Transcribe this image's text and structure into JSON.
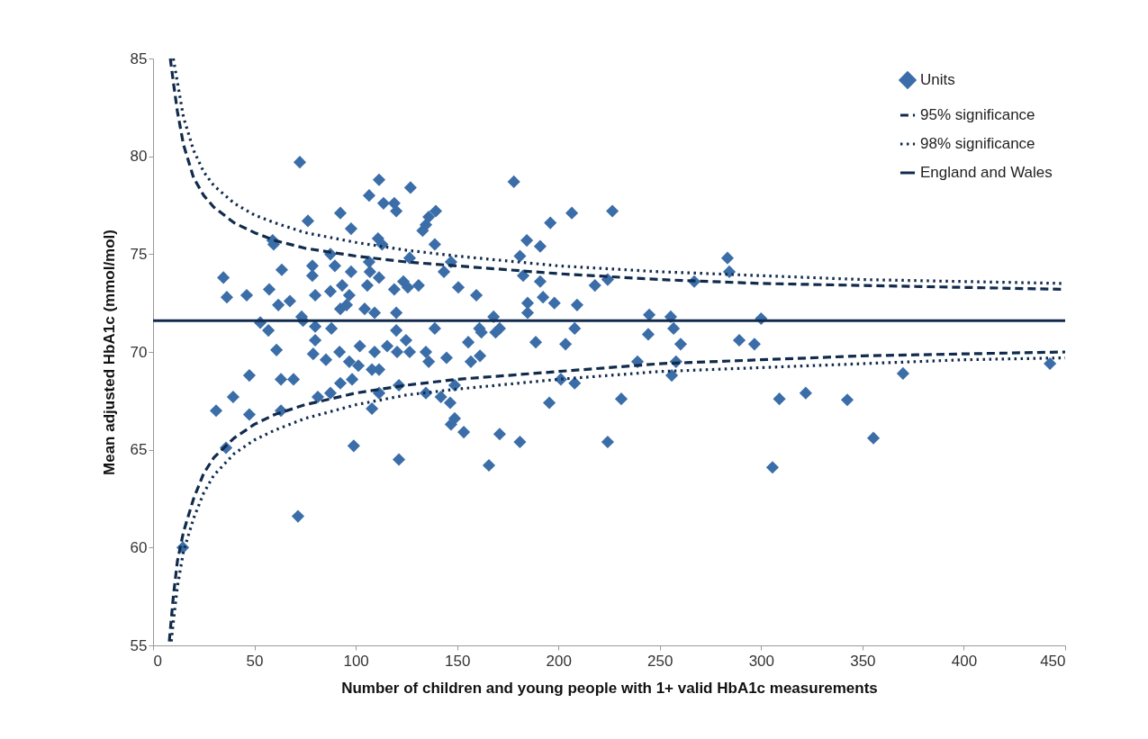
{
  "chart_data": {
    "type": "scatter",
    "xlabel": "Number of children and young people with 1+ valid HbA1c measurements",
    "ylabel": "Mean adjusted HbA1c (mmol/mol)",
    "xlim": [
      0,
      450
    ],
    "xticks": [
      0,
      50,
      100,
      150,
      200,
      250,
      300,
      350,
      400,
      450
    ],
    "ylim": [
      55,
      85
    ],
    "yticks": [
      55,
      60,
      65,
      70,
      75,
      80,
      85
    ],
    "grid": false,
    "legend": "top right",
    "series": [
      {
        "name": "Units",
        "marker": "diamond",
        "color": "#3b6ea8",
        "x": [
          14.7,
          52.9,
          56.9,
          60.9,
          47.5,
          63.1,
          69.3,
          39.5,
          31.1,
          47.5,
          63.1,
          36,
          71.5,
          88,
          81.3,
          87.5,
          79,
          85.3,
          80,
          74,
          80,
          92,
          92.4,
          72.4,
          92.4,
          76.4,
          59,
          59.5,
          87.5,
          63.5,
          78.6,
          78.6,
          89.7,
          34.7,
          36.4,
          46.2,
          57.3,
          61.8,
          67.5,
          80,
          87.5,
          92.4,
          73.3,
          111.5,
          127,
          106.6,
          113.7,
          119,
          120,
          139.5,
          136,
          134.6,
          133,
          97.7,
          178,
          196,
          111,
          113,
          139,
          126.6,
          106.6,
          97.7,
          107,
          147,
          143.5,
          184.4,
          191,
          181,
          182.6,
          191,
          192.4,
          184.8,
          184.8,
          111.5,
          105.7,
          93.3,
          123.5,
          131,
          119,
          125.7,
          150.6,
          159.5,
          96.8,
          95.5,
          104.4,
          109.3,
          120,
          168,
          139,
          161,
          171,
          120,
          162,
          169,
          188.8,
          102,
          109.3,
          115.5,
          124.8,
          120.4,
          126.6,
          134.6,
          136,
          144.8,
          155.5,
          156.8,
          161.3,
          96.8,
          101.3,
          108,
          111.5,
          98.2,
          121.3,
          111.5,
          108,
          134.6,
          142,
          146.6,
          148.8,
          148.8,
          147,
          153.3,
          171,
          181,
          99,
          121.3,
          165.7,
          195.5,
          206.6,
          226.6,
          283.4,
          284.3,
          218,
          224.3,
          267,
          198,
          209.2,
          208,
          244.8,
          255.4,
          256.8,
          300,
          244.3,
          260.3,
          289.2,
          296.7,
          203.5,
          239,
          258,
          255.9,
          201.2,
          208,
          231,
          309,
          224.3,
          305.6,
          442.5,
          370,
          322,
          342.5,
          355.4
        ],
        "values": [
          60.0,
          71.5,
          71.1,
          70.1,
          68.8,
          68.6,
          68.6,
          67.7,
          67.0,
          66.8,
          67.0,
          65.1,
          61.6,
          71.2,
          67.7,
          67.9,
          69.9,
          69.6,
          70.6,
          71.6,
          71.3,
          70.0,
          68.4,
          79.7,
          77.1,
          76.7,
          75.7,
          75.5,
          75.0,
          74.2,
          74.4,
          73.9,
          74.4,
          73.8,
          72.8,
          72.9,
          73.2,
          72.4,
          72.6,
          72.9,
          73.1,
          72.2,
          71.8,
          78.8,
          78.4,
          78.0,
          77.6,
          77.6,
          77.2,
          77.2,
          76.9,
          76.5,
          76.2,
          76.3,
          78.7,
          76.6,
          75.8,
          75.5,
          75.5,
          74.8,
          74.6,
          74.1,
          74.1,
          74.6,
          74.1,
          75.7,
          75.4,
          74.9,
          73.9,
          73.6,
          72.8,
          72.5,
          72.0,
          73.8,
          73.4,
          73.4,
          73.6,
          73.4,
          73.2,
          73.3,
          73.3,
          72.9,
          72.9,
          72.4,
          72.2,
          72.0,
          72.0,
          71.8,
          71.2,
          71.2,
          71.2,
          71.1,
          71.0,
          71.0,
          70.5,
          70.3,
          70.0,
          70.3,
          70.6,
          70.0,
          70.0,
          70.0,
          69.5,
          69.7,
          70.5,
          69.5,
          69.8,
          69.5,
          69.3,
          69.1,
          69.1,
          68.6,
          68.3,
          67.9,
          67.1,
          67.9,
          67.7,
          67.4,
          68.3,
          66.6,
          66.3,
          65.9,
          65.8,
          65.4,
          65.2,
          64.5,
          64.2,
          67.4,
          77.1,
          77.2,
          74.8,
          74.1,
          73.4,
          73.7,
          73.6,
          72.5,
          72.4,
          71.2,
          71.9,
          71.8,
          71.2,
          71.7,
          70.9,
          70.4,
          70.6,
          70.4,
          70.4,
          69.5,
          69.5,
          68.8,
          68.6,
          68.4,
          67.6,
          67.6,
          65.4,
          64.1,
          69.4,
          68.9,
          67.9,
          67.55,
          65.6
        ]
      },
      {
        "name": "95% significance",
        "type": "line",
        "line_style": "dashed",
        "color": "#112b4c",
        "x": [
          8.5,
          10,
          12,
          15,
          20,
          25,
          30,
          40,
          50,
          60,
          75,
          100,
          125,
          150,
          200,
          250,
          300,
          350,
          400,
          450,
          null,
          8,
          10,
          12,
          15,
          20,
          25,
          30,
          40,
          50,
          60,
          75,
          100,
          125,
          150,
          200,
          250,
          300,
          350,
          400,
          450
        ],
        "values": [
          85,
          83.8,
          82.3,
          80.6,
          78.9,
          78.0,
          77.4,
          76.6,
          76.1,
          75.7,
          75.3,
          74.9,
          74.6,
          74.4,
          74.0,
          73.7,
          73.5,
          73.4,
          73.3,
          73.2,
          null,
          55.2,
          57.5,
          59.3,
          60.8,
          62.5,
          63.8,
          64.6,
          65.6,
          66.3,
          66.8,
          67.3,
          67.9,
          68.3,
          68.6,
          69.0,
          69.4,
          69.6,
          69.8,
          69.9,
          70.0
        ]
      },
      {
        "name": "98% significance",
        "type": "line",
        "line_style": "dotted",
        "color": "#112b4c",
        "x": [
          10,
          12,
          15,
          20,
          25,
          30,
          40,
          50,
          60,
          75,
          100,
          125,
          150,
          200,
          250,
          300,
          350,
          400,
          450,
          null,
          9,
          10,
          12,
          15,
          20,
          25,
          30,
          40,
          50,
          60,
          75,
          100,
          125,
          150,
          200,
          250,
          300,
          350,
          400,
          450
        ],
        "values": [
          85,
          83.8,
          82.0,
          80.3,
          79.2,
          78.5,
          77.6,
          77.0,
          76.6,
          76.1,
          75.6,
          75.2,
          74.9,
          74.4,
          74.1,
          73.9,
          73.7,
          73.6,
          73.5,
          null,
          55.2,
          56.2,
          58.0,
          59.8,
          61.5,
          62.8,
          63.7,
          64.8,
          65.5,
          66.0,
          66.6,
          67.3,
          67.8,
          68.1,
          68.6,
          69.0,
          69.2,
          69.4,
          69.6,
          69.7
        ]
      },
      {
        "name": "England and Wales",
        "type": "line",
        "line_style": "solid",
        "color": "#112b4c",
        "x": [
          0,
          450
        ],
        "values": [
          71.6,
          71.6
        ]
      }
    ]
  }
}
